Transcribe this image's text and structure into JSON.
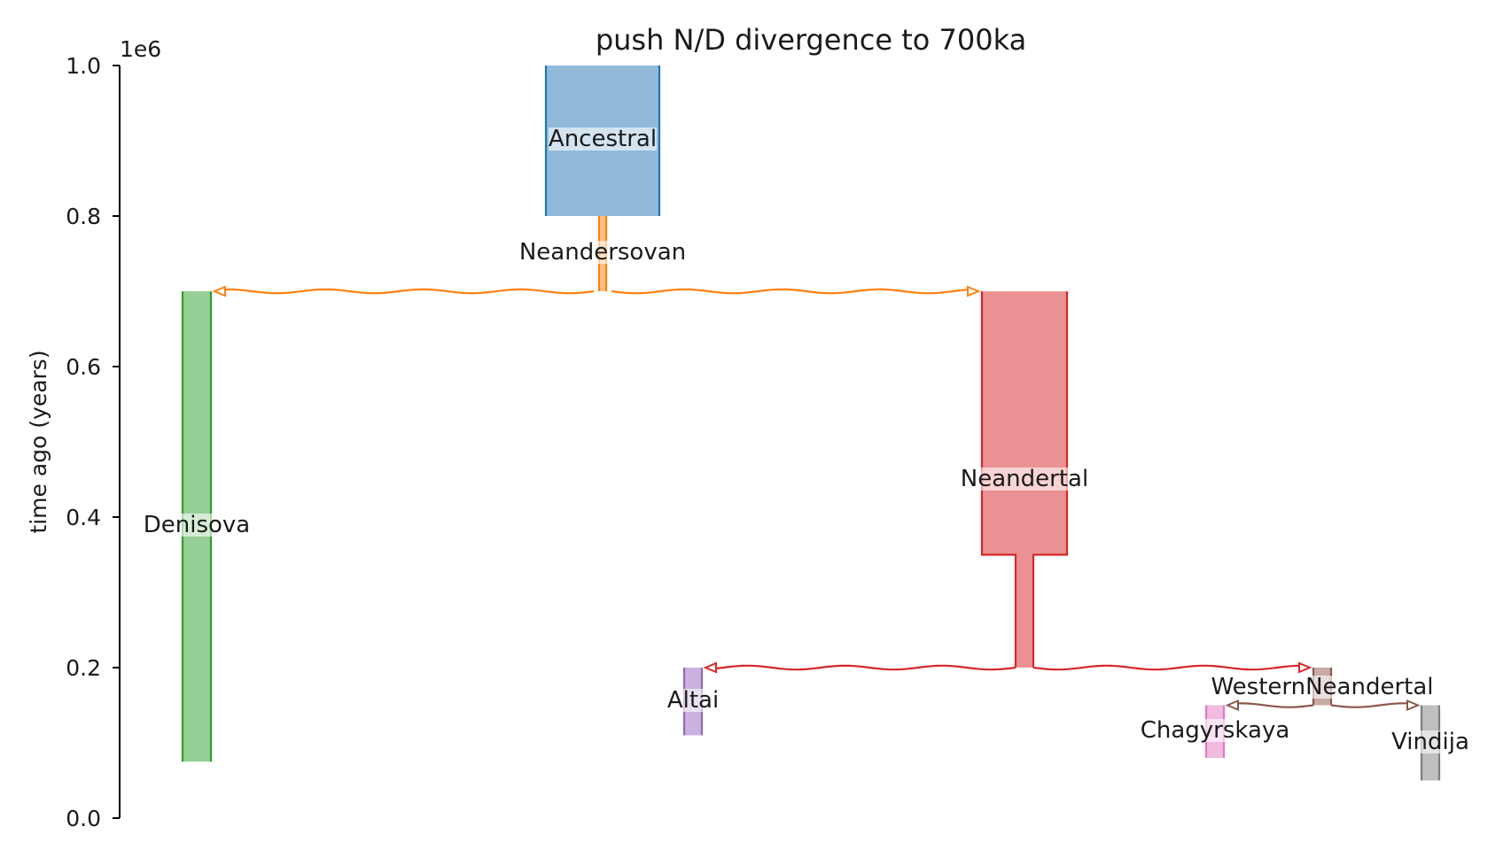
{
  "title": "push N/D divergence to 700ka",
  "y_axis": {
    "label": "time ago (years)",
    "offset_text": "1e6",
    "range": [
      0,
      1000000
    ],
    "ticks": [
      {
        "value": 0,
        "label": "0.0"
      },
      {
        "value": 200000,
        "label": "0.2"
      },
      {
        "value": 400000,
        "label": "0.4"
      },
      {
        "value": 600000,
        "label": "0.6"
      },
      {
        "value": 800000,
        "label": "0.8"
      },
      {
        "value": 1000000,
        "label": "1.0"
      }
    ]
  },
  "demes": [
    {
      "name": "Ancestral",
      "label": "Ancestral",
      "color": "#1f77b4",
      "fill": "#91bad9",
      "start_time": 1000000,
      "end_time": 800000
    },
    {
      "name": "Neandersovan",
      "label": "Neandersovan",
      "color": "#ff7f0e",
      "fill": "#ffbf87",
      "start_time": 800000,
      "end_time": 700000
    },
    {
      "name": "Denisova",
      "label": "Denisova",
      "color": "#2ca02c",
      "fill": "#96cf96",
      "start_time": 700000,
      "end_time": 75000
    },
    {
      "name": "Neandertal",
      "label": "Neandertal",
      "color": "#d62728",
      "fill": "#ea9293",
      "start_time": 700000,
      "end_time": 200000,
      "size_change_time": 350000
    },
    {
      "name": "Altai",
      "label": "Altai",
      "color": "#9467bd",
      "fill": "#c9b3de",
      "start_time": 200000,
      "end_time": 110000
    },
    {
      "name": "WesternNeandertal",
      "label": "WesternNeandertal",
      "color": "#8c564b",
      "fill": "#c5aaa5",
      "start_time": 200000,
      "end_time": 150000
    },
    {
      "name": "Chagyrskaya",
      "label": "Chagyrskaya",
      "color": "#e377c2",
      "fill": "#f1bbe0",
      "start_time": 150000,
      "end_time": 80000
    },
    {
      "name": "Vindija",
      "label": "Vindija",
      "color": "#7f7f7f",
      "fill": "#bfbfbf",
      "start_time": 150000,
      "end_time": 50000
    }
  ],
  "splits": [
    {
      "parent": "Neandersovan",
      "time": 700000,
      "children": [
        "Denisova",
        "Neandertal"
      ],
      "color": "#ff7f0e"
    },
    {
      "parent": "Neandertal",
      "time": 200000,
      "children": [
        "Altai",
        "WesternNeandertal"
      ],
      "color": "#d62728"
    },
    {
      "parent": "WesternNeandertal",
      "time": 150000,
      "children": [
        "Chagyrskaya",
        "Vindija"
      ],
      "color": "#8c564b"
    }
  ]
}
